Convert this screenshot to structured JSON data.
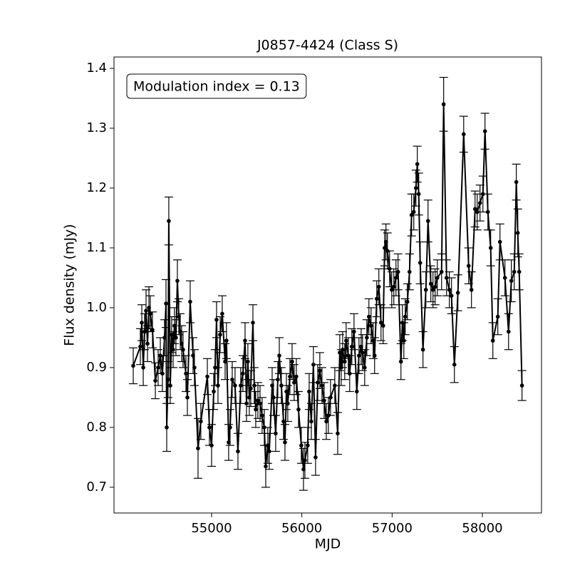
{
  "chart_data": {
    "type": "errorbar_line",
    "title": "J0857-4424 (Class S)",
    "x_label": "MJD",
    "y_label": "Flux density (mJy)",
    "annotation": "Modulation index = 0.13",
    "xlim": [
      53919,
      58655
    ],
    "ylim": [
      0.657,
      1.419
    ],
    "xticks": [
      55000,
      56000,
      57000,
      58000
    ],
    "yticks": [
      0.7,
      0.8,
      0.9,
      {
        "value": 1,
        "label": "1.0"
      },
      1.1,
      1.2,
      1.3,
      1.4
    ],
    "grid": false,
    "series": [
      {
        "color": "#000000",
        "x": [
          54132,
          54211,
          54227,
          54243,
          54258,
          54274,
          54290,
          54306,
          54321,
          54345,
          54377,
          54408,
          54432,
          54455,
          54479,
          54495,
          54503,
          54518,
          54526,
          54542,
          54558,
          54574,
          54589,
          54605,
          54621,
          54637,
          54653,
          54668,
          54684,
          54716,
          54732,
          54763,
          54795,
          54810,
          54850,
          54881,
          54953,
          54976,
          55000,
          55024,
          55039,
          55055,
          55071,
          55095,
          55118,
          55150,
          55165,
          55189,
          55205,
          55229,
          55260,
          55292,
          55323,
          55347,
          55371,
          55387,
          55402,
          55418,
          55434,
          55458,
          55473,
          55489,
          55513,
          55537,
          55560,
          55584,
          55600,
          55623,
          55639,
          55671,
          55686,
          55710,
          55734,
          55750,
          55773,
          55797,
          55813,
          55829,
          55844,
          55868,
          55892,
          55915,
          55939,
          55963,
          55994,
          56018,
          56034,
          56065,
          56081,
          56105,
          56128,
          56152,
          56176,
          56199,
          56223,
          56247,
          56271,
          56294,
          56318,
          56365,
          56397,
          56420,
          56436,
          56452,
          56475,
          56491,
          56515,
          56530,
          56554,
          56578,
          56609,
          56633,
          56657,
          56672,
          56696,
          56720,
          56743,
          56767,
          56790,
          56806,
          56830,
          56853,
          56877,
          56901,
          56917,
          56932,
          56948,
          56972,
          56996,
          57019,
          57043,
          57066,
          57098,
          57114,
          57130,
          57145,
          57169,
          57193,
          57216,
          57240,
          57264,
          57279,
          57295,
          57311,
          57342,
          57374,
          57398,
          57429,
          57453,
          57477,
          57501,
          57548,
          57571,
          57603,
          57634,
          57658,
          57690,
          57729,
          57793,
          57848,
          57879,
          57919,
          57943,
          57974,
          58006,
          58029,
          58061,
          58092,
          58116,
          58171,
          58195,
          58250,
          58290,
          58321,
          58353,
          58376,
          58392,
          58408,
          58439
        ],
        "values": [
          0.903,
          0.935,
          0.975,
          0.9,
          0.96,
          0.995,
          0.94,
          1.0,
          0.99,
          0.963,
          0.878,
          0.9,
          0.92,
          0.89,
          0.95,
          1.007,
          0.8,
          0.88,
          1.145,
          0.87,
          0.955,
          0.93,
          0.97,
          0.95,
          1.045,
          0.985,
          0.96,
          0.94,
          0.93,
          0.89,
          0.85,
          1.01,
          0.92,
          0.9,
          0.765,
          0.81,
          0.885,
          0.8,
          0.77,
          0.86,
          0.9,
          0.98,
          0.87,
          0.955,
          0.99,
          0.91,
          0.945,
          0.775,
          0.8,
          0.88,
          0.87,
          0.76,
          0.87,
          0.89,
          0.945,
          0.84,
          0.91,
          0.85,
          0.865,
          0.975,
          0.87,
          0.83,
          0.845,
          0.84,
          0.82,
          0.8,
          0.735,
          0.77,
          0.76,
          0.87,
          0.85,
          0.79,
          0.88,
          0.92,
          0.87,
          0.81,
          0.775,
          0.86,
          0.84,
          0.885,
          0.91,
          0.875,
          0.885,
          0.83,
          0.77,
          0.73,
          0.745,
          0.77,
          0.86,
          0.81,
          0.905,
          0.75,
          0.875,
          0.895,
          0.87,
          0.845,
          0.81,
          0.82,
          0.85,
          0.87,
          0.79,
          0.925,
          0.9,
          0.93,
          0.91,
          0.945,
          0.92,
          0.89,
          0.935,
          0.96,
          0.86,
          0.92,
          0.935,
          0.925,
          0.9,
          0.95,
          0.985,
          0.97,
          0.945,
          0.92,
          1.015,
          1.035,
          0.975,
          0.97,
          1.1,
          1.11,
          1.095,
          1.065,
          1.03,
          1.035,
          1.05,
          1.06,
          0.91,
          0.975,
          0.945,
          0.985,
          1.01,
          1.06,
          1.155,
          1.16,
          1.2,
          1.24,
          1.19,
          1.075,
          0.93,
          1.03,
          1.145,
          1.04,
          1.03,
          1.035,
          1.05,
          1.06,
          1.34,
          1.05,
          1.03,
          1.02,
          0.905,
          1.025,
          1.29,
          1.07,
          1.03,
          1.165,
          1.16,
          1.175,
          1.19,
          1.295,
          1.16,
          1.1,
          0.945,
          0.985,
          1.11,
          1.05,
          0.96,
          1.045,
          1.06,
          1.21,
          1.125,
          1.06,
          0.87
        ],
        "errors": [
          0.03,
          0.03,
          0.03,
          0.03,
          0.03,
          0.035,
          0.03,
          0.035,
          0.03,
          0.03,
          0.03,
          0.03,
          0.03,
          0.03,
          0.03,
          0.04,
          0.04,
          0.03,
          0.04,
          0.03,
          0.03,
          0.03,
          0.03,
          0.03,
          0.035,
          0.03,
          0.03,
          0.03,
          0.03,
          0.03,
          0.03,
          0.035,
          0.03,
          0.03,
          0.05,
          0.03,
          0.03,
          0.03,
          0.035,
          0.03,
          0.03,
          0.03,
          0.03,
          0.03,
          0.03,
          0.03,
          0.03,
          0.03,
          0.03,
          0.03,
          0.03,
          0.03,
          0.03,
          0.03,
          0.03,
          0.03,
          0.03,
          0.03,
          0.03,
          0.03,
          0.03,
          0.03,
          0.03,
          0.03,
          0.03,
          0.03,
          0.035,
          0.03,
          0.03,
          0.03,
          0.03,
          0.03,
          0.03,
          0.03,
          0.03,
          0.03,
          0.03,
          0.03,
          0.03,
          0.03,
          0.03,
          0.03,
          0.03,
          0.03,
          0.03,
          0.035,
          0.03,
          0.03,
          0.03,
          0.03,
          0.03,
          0.03,
          0.03,
          0.03,
          0.03,
          0.03,
          0.03,
          0.03,
          0.03,
          0.03,
          0.035,
          0.03,
          0.03,
          0.03,
          0.03,
          0.03,
          0.03,
          0.03,
          0.03,
          0.03,
          0.03,
          0.03,
          0.03,
          0.03,
          0.03,
          0.03,
          0.03,
          0.03,
          0.03,
          0.03,
          0.03,
          0.03,
          0.03,
          0.03,
          0.03,
          0.03,
          0.03,
          0.03,
          0.03,
          0.03,
          0.03,
          0.03,
          0.03,
          0.03,
          0.03,
          0.03,
          0.03,
          0.03,
          0.035,
          0.03,
          0.03,
          0.03,
          0.035,
          0.035,
          0.03,
          0.03,
          0.035,
          0.03,
          0.03,
          0.03,
          0.03,
          0.03,
          0.045,
          0.03,
          0.03,
          0.03,
          0.03,
          0.03,
          0.03,
          0.03,
          0.03,
          0.03,
          0.03,
          0.03,
          0.03,
          0.03,
          0.03,
          0.03,
          0.03,
          0.03,
          0.03,
          0.03,
          0.03,
          0.035,
          0.03,
          0.03,
          0.04,
          0.03,
          0.025
        ]
      }
    ]
  }
}
